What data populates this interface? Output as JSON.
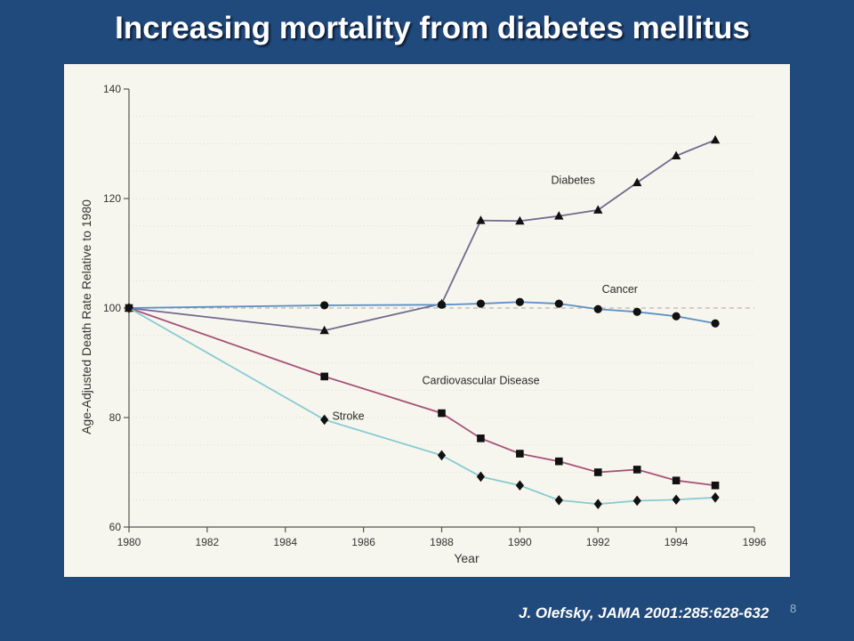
{
  "slide": {
    "title": "Increasing mortality from diabetes mellitus",
    "citation": "J. Olefsky, JAMA 2001:285:628-632",
    "page_number": "8"
  },
  "chart_data": {
    "type": "line",
    "xlabel": "Year",
    "ylabel": "Age-Adjusted Death Rate Relative to 1980",
    "xlim": [
      1980,
      1996
    ],
    "ylim": [
      60,
      140
    ],
    "xticks": [
      1980,
      1982,
      1984,
      1986,
      1988,
      1990,
      1992,
      1994,
      1996
    ],
    "yticks": [
      60,
      80,
      100,
      120,
      140
    ],
    "reference_line": 100,
    "grid": "faint dotted horizontal",
    "series": [
      {
        "name": "Diabetes",
        "marker": "triangle",
        "color": "#6f6b8f",
        "x": [
          1980,
          1985,
          1988,
          1989,
          1990,
          1991,
          1992,
          1993,
          1994,
          1995
        ],
        "y": [
          100,
          95.9,
          100.8,
          116,
          115.9,
          116.8,
          117.9,
          122.9,
          127.8,
          130.7
        ]
      },
      {
        "name": "Cancer",
        "marker": "circle",
        "color": "#5b8fc4",
        "x": [
          1980,
          1985,
          1988,
          1989,
          1990,
          1991,
          1992,
          1993,
          1994,
          1995
        ],
        "y": [
          100,
          100.5,
          100.6,
          100.8,
          101.1,
          100.8,
          99.8,
          99.3,
          98.5,
          97.2
        ]
      },
      {
        "name": "Cardiovascular Disease",
        "marker": "square",
        "color": "#a6527a",
        "x": [
          1980,
          1985,
          1988,
          1989,
          1990,
          1991,
          1992,
          1993,
          1994,
          1995
        ],
        "y": [
          100,
          87.5,
          80.8,
          76.2,
          73.4,
          72,
          70,
          70.5,
          68.5,
          67.6
        ]
      },
      {
        "name": "Stroke",
        "marker": "diamond",
        "color": "#86ccd2",
        "x": [
          1980,
          1985,
          1988,
          1989,
          1990,
          1991,
          1992,
          1993,
          1994,
          1995
        ],
        "y": [
          100,
          79.6,
          73.1,
          69.2,
          67.6,
          64.9,
          64.2,
          64.8,
          65,
          65.4
        ]
      }
    ]
  }
}
